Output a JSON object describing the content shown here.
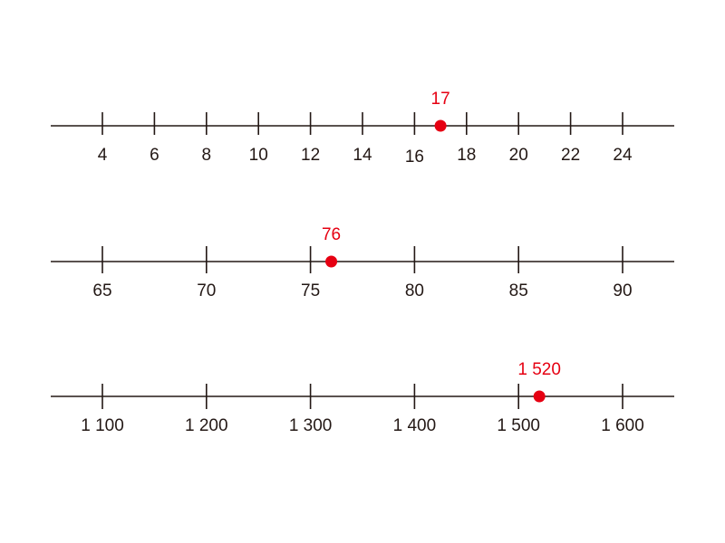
{
  "colors": {
    "line": "#231815",
    "marker": "#e60012"
  },
  "number_lines": [
    {
      "ticks": [
        {
          "value": 4,
          "label": "4"
        },
        {
          "value": 6,
          "label": "6"
        },
        {
          "value": 8,
          "label": "8"
        },
        {
          "value": 10,
          "label": "10"
        },
        {
          "value": 12,
          "label": "12"
        },
        {
          "value": 14,
          "label": "14"
        },
        {
          "value": 16,
          "label": "16"
        },
        {
          "value": 18,
          "label": "18"
        },
        {
          "value": 20,
          "label": "20"
        },
        {
          "value": 22,
          "label": "22"
        },
        {
          "value": 24,
          "label": "24"
        }
      ],
      "marker": {
        "value": 17,
        "label": "17"
      }
    },
    {
      "ticks": [
        {
          "value": 65,
          "label": "65"
        },
        {
          "value": 70,
          "label": "70"
        },
        {
          "value": 75,
          "label": "75"
        },
        {
          "value": 80,
          "label": "80"
        },
        {
          "value": 85,
          "label": "85"
        },
        {
          "value": 90,
          "label": "90"
        }
      ],
      "marker": {
        "value": 76,
        "label": "76"
      }
    },
    {
      "ticks": [
        {
          "value": 1100,
          "label": "1 100"
        },
        {
          "value": 1200,
          "label": "1 200"
        },
        {
          "value": 1300,
          "label": "1 300"
        },
        {
          "value": 1400,
          "label": "1 400"
        },
        {
          "value": 1500,
          "label": "1 500"
        },
        {
          "value": 1600,
          "label": "1 600"
        }
      ],
      "marker": {
        "value": 1520,
        "label": "1 520"
      }
    }
  ]
}
